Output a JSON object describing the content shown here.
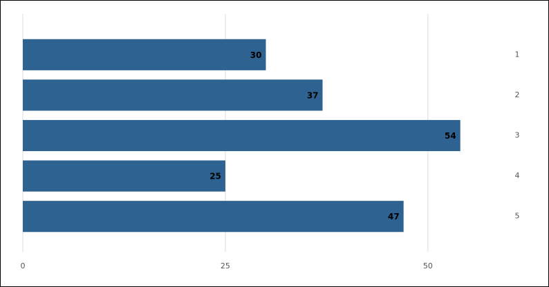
{
  "chart_data": {
    "type": "bar",
    "orientation": "horizontal",
    "categories": [
      "1",
      "2",
      "3",
      "4",
      "5"
    ],
    "values": [
      30,
      37,
      54,
      25,
      47
    ],
    "color": "#2e6290",
    "xlim": [
      0,
      60
    ],
    "xticks": [
      0,
      25,
      50
    ],
    "grid": true
  }
}
